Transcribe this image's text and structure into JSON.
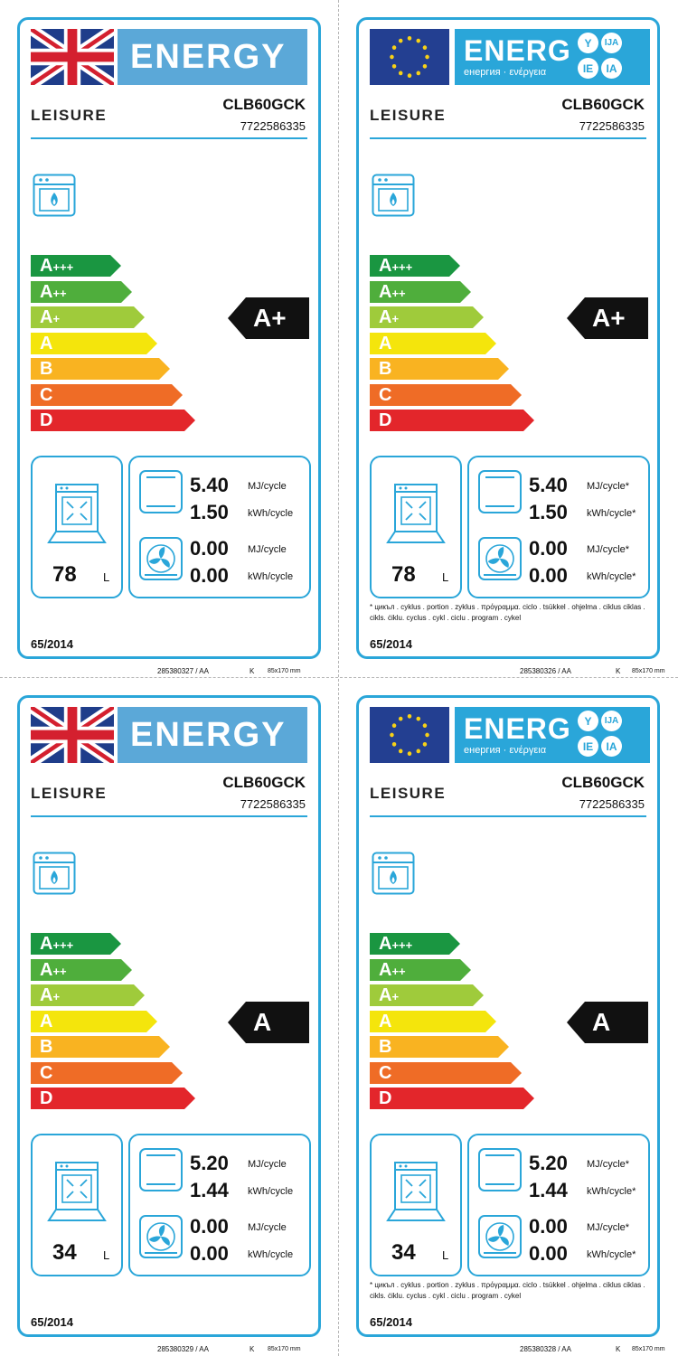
{
  "colors": {
    "frame": "#2aa6d9",
    "energy_uk": "#5ba8d8",
    "energy_eu": "#2aa6d9",
    "bar_colors": [
      "#1a9641",
      "#4fae3c",
      "#9fcb3b",
      "#f4e50c",
      "#f9b321",
      "#ef6c26",
      "#e3262b"
    ],
    "rating_arrow": "#111111"
  },
  "scale_marks": {
    "labels": [
      "A+++",
      "A++",
      "A+",
      "A",
      "B",
      "C",
      "D"
    ],
    "letters": [
      "A",
      "A",
      "A",
      "A",
      "B",
      "C",
      "D"
    ],
    "sups": [
      "+++",
      "++",
      "+",
      "",
      "",
      "",
      ""
    ]
  },
  "labels": [
    {
      "variant": "uk",
      "energy_word": "ENERGY",
      "brand": "LEISURE",
      "model": "CLB60GCK",
      "code": "7722586335",
      "rating": "A+",
      "volume": "78",
      "volume_unit": "L",
      "cav1_mj": "5.40",
      "cav1_mj_unit": "MJ/cycle",
      "cav1_kwh": "1.50",
      "cav1_kwh_unit": "kWh/cycle",
      "cav2_mj": "0.00",
      "cav2_mj_unit": "MJ/cycle",
      "cav2_kwh": "0.00",
      "cav2_kwh_unit": "kWh/cycle",
      "footnote": "",
      "regulation": "65/2014",
      "print_code": "285380327 /  AA",
      "print_k": "K",
      "print_size": "85x170 mm"
    },
    {
      "variant": "eu",
      "energy_word": "ENERG",
      "energy_sub": "енергия · ενέργεια",
      "lang_y": "Y",
      "lang_ija": "IJA",
      "lang_ie": "IE",
      "lang_ia": "IA",
      "brand": "LEISURE",
      "model": "CLB60GCK",
      "code": "7722586335",
      "rating": "A+",
      "volume": "78",
      "volume_unit": "L",
      "cav1_mj": "5.40",
      "cav1_mj_unit": "MJ/cycle*",
      "cav1_kwh": "1.50",
      "cav1_kwh_unit": "kWh/cycle*",
      "cav2_mj": "0.00",
      "cav2_mj_unit": "MJ/cycle*",
      "cav2_kwh": "0.00",
      "cav2_kwh_unit": "kWh/cycle*",
      "footnote": "* цикъл . cyklus . portion . zyklus . πρόγραμμα. ciclo . tsükkel . ohjelma . ciklus ciklas . cikls. ċiklu. cyclus . cykl . ciclu . program . cykel",
      "regulation": "65/2014",
      "print_code": "285380326 /  AA",
      "print_k": "K",
      "print_size": "85x170 mm"
    },
    {
      "variant": "uk",
      "energy_word": "ENERGY",
      "brand": "LEISURE",
      "model": "CLB60GCK",
      "code": "7722586335",
      "rating": "A",
      "volume": "34",
      "volume_unit": "L",
      "cav1_mj": "5.20",
      "cav1_mj_unit": "MJ/cycle",
      "cav1_kwh": "1.44",
      "cav1_kwh_unit": "kWh/cycle",
      "cav2_mj": "0.00",
      "cav2_mj_unit": "MJ/cycle",
      "cav2_kwh": "0.00",
      "cav2_kwh_unit": "kWh/cycle",
      "footnote": "",
      "regulation": "65/2014",
      "print_code": "285380329 /  AA",
      "print_k": "K",
      "print_size": "85x170 mm"
    },
    {
      "variant": "eu",
      "energy_word": "ENERG",
      "energy_sub": "енергия · ενέργεια",
      "lang_y": "Y",
      "lang_ija": "IJA",
      "lang_ie": "IE",
      "lang_ia": "IA",
      "brand": "LEISURE",
      "model": "CLB60GCK",
      "code": "7722586335",
      "rating": "A",
      "volume": "34",
      "volume_unit": "L",
      "cav1_mj": "5.20",
      "cav1_mj_unit": "MJ/cycle*",
      "cav1_kwh": "1.44",
      "cav1_kwh_unit": "kWh/cycle*",
      "cav2_mj": "0.00",
      "cav2_mj_unit": "MJ/cycle*",
      "cav2_kwh": "0.00",
      "cav2_kwh_unit": "kWh/cycle*",
      "footnote": "* цикъл . cyklus . portion . zyklus . πρόγραμμα. ciclo . tsükkel . ohjelma . ciklus ciklas . cikls. ċiklu. cyclus . cykl . ciclu . program . cykel",
      "regulation": "65/2014",
      "print_code": "285380328 /  AA",
      "print_k": "K",
      "print_size": "85x170 mm"
    }
  ]
}
